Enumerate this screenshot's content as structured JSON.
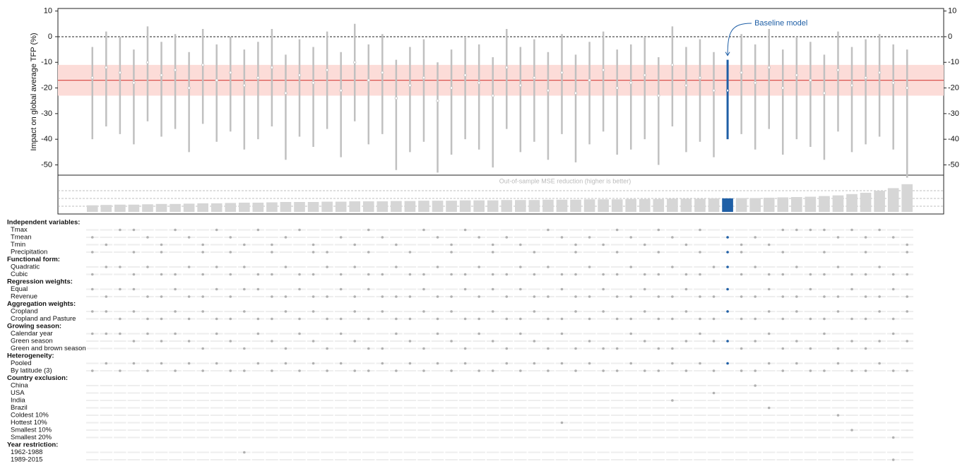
{
  "chart_data": {
    "type": "specification-curve",
    "y_label": "Impact on global average TFP (%)",
    "ylim": [
      -54,
      11
    ],
    "yticks": [
      -50,
      -40,
      -30,
      -20,
      -10,
      0,
      10
    ],
    "mean": -17,
    "band": [
      -23,
      -11
    ],
    "annotation": "Baseline model",
    "baseline_index": 46,
    "color": "#c0c0c0",
    "baseline_color": "#1f5fa6",
    "values": [
      -16,
      -12,
      -14,
      -18,
      -10,
      -15,
      -13,
      -20,
      -11,
      -17,
      -14,
      -19,
      -16,
      -12,
      -22,
      -15,
      -18,
      -13,
      -21,
      -10,
      -17,
      -14,
      -24,
      -19,
      -16,
      -25,
      -20,
      -15,
      -18,
      -23,
      -12,
      -19,
      -16,
      -21,
      -14,
      -22,
      -17,
      -13,
      -20,
      -18,
      -15,
      -23,
      -11,
      -19,
      -16,
      -21,
      -21,
      -14,
      -18,
      -12,
      -20,
      -15,
      -17,
      -22,
      -13,
      -19,
      -16,
      -14,
      -18,
      -20
    ],
    "low": [
      -40,
      -35,
      -38,
      -42,
      -33,
      -39,
      -36,
      -45,
      -34,
      -41,
      -37,
      -44,
      -40,
      -35,
      -48,
      -39,
      -43,
      -36,
      -47,
      -33,
      -42,
      -38,
      -52,
      -45,
      -41,
      -53,
      -46,
      -40,
      -44,
      -51,
      -36,
      -45,
      -41,
      -48,
      -38,
      -49,
      -42,
      -37,
      -46,
      -44,
      -40,
      -50,
      -35,
      -45,
      -41,
      -47,
      -40,
      -38,
      -44,
      -36,
      -46,
      -40,
      -43,
      -48,
      -37,
      -45,
      -42,
      -39,
      -44,
      -55
    ],
    "high": [
      -4,
      2,
      0,
      -5,
      4,
      -2,
      1,
      -6,
      3,
      -3,
      0,
      -5,
      -2,
      3,
      -7,
      -1,
      -4,
      2,
      -6,
      5,
      -3,
      1,
      -9,
      -4,
      -1,
      -10,
      -5,
      0,
      -3,
      -8,
      3,
      -4,
      -1,
      -6,
      1,
      -7,
      -2,
      2,
      -5,
      -3,
      0,
      -8,
      4,
      -4,
      -1,
      -6,
      -9,
      1,
      -3,
      3,
      -5,
      0,
      -2,
      -7,
      2,
      -4,
      -1,
      1,
      -3,
      -5
    ],
    "mse_label": "Out-of-sample MSE reduction (higher is better)",
    "mse_lim": [
      0,
      4.5
    ],
    "mse": [
      1.0,
      1.05,
      1.1,
      1.1,
      1.15,
      1.2,
      1.2,
      1.25,
      1.3,
      1.3,
      1.35,
      1.4,
      1.4,
      1.45,
      1.5,
      1.5,
      1.5,
      1.55,
      1.55,
      1.6,
      1.6,
      1.6,
      1.65,
      1.65,
      1.7,
      1.7,
      1.7,
      1.75,
      1.75,
      1.75,
      1.8,
      1.8,
      1.8,
      1.85,
      1.85,
      1.85,
      1.9,
      1.9,
      1.9,
      1.95,
      1.95,
      1.95,
      2.0,
      2.0,
      2.0,
      2.05,
      2.05,
      2.1,
      2.1,
      2.15,
      2.2,
      2.25,
      2.3,
      2.4,
      2.5,
      2.7,
      2.9,
      3.2,
      3.6,
      4.2
    ],
    "groups": [
      {
        "name": "Independent variables:",
        "rows": [
          {
            "label": "Tmax",
            "on": [
              2,
              3,
              6,
              9,
              12,
              15,
              20,
              24,
              27,
              33,
              38,
              41,
              44,
              50,
              51,
              52,
              53,
              55,
              57
            ]
          },
          {
            "label": "Tmean",
            "on": [
              0,
              4,
              7,
              10,
              14,
              18,
              21,
              25,
              28,
              30,
              34,
              36,
              39,
              42,
              46,
              48,
              54,
              56,
              58
            ]
          },
          {
            "label": "Tmin",
            "on": [
              1,
              5,
              8,
              11,
              13,
              16,
              19,
              22,
              26,
              29,
              31,
              35,
              37,
              40,
              43,
              47,
              49,
              59
            ]
          },
          {
            "label": "Precipitation",
            "on": [
              0,
              3,
              5,
              8,
              10,
              13,
              16,
              17,
              20,
              23,
              26,
              29,
              32,
              35,
              38,
              41,
              44,
              46,
              47,
              50,
              53,
              56,
              59
            ]
          }
        ]
      },
      {
        "name": "Functional form:",
        "rows": [
          {
            "label": "Quadratic",
            "on": [
              1,
              2,
              4,
              7,
              9,
              11,
              14,
              17,
              19,
              22,
              25,
              28,
              31,
              33,
              36,
              39,
              42,
              45,
              46,
              48,
              51,
              54,
              57
            ]
          },
          {
            "label": "Cubic",
            "on": [
              0,
              3,
              5,
              6,
              8,
              10,
              12,
              13,
              15,
              16,
              18,
              20,
              21,
              23,
              24,
              26,
              27,
              29,
              30,
              32,
              34,
              35,
              37,
              38,
              40,
              41,
              43,
              44,
              47,
              49,
              50,
              52,
              53,
              55,
              56,
              58,
              59
            ]
          }
        ]
      },
      {
        "name": "Regression weights:",
        "rows": [
          {
            "label": "Equal",
            "on": [
              0,
              2,
              3,
              6,
              9,
              11,
              12,
              15,
              18,
              20,
              24,
              27,
              29,
              31,
              34,
              37,
              40,
              43,
              46,
              49,
              52,
              55,
              58
            ]
          },
          {
            "label": "Revenue",
            "on": [
              1,
              4,
              5,
              7,
              8,
              10,
              13,
              14,
              16,
              17,
              19,
              21,
              22,
              23,
              25,
              26,
              28,
              30,
              32,
              33,
              35,
              36,
              38,
              39,
              41,
              42,
              44,
              45,
              47,
              48,
              50,
              51,
              53,
              54,
              56,
              57,
              59
            ]
          }
        ]
      },
      {
        "name": "Aggregation weights:",
        "rows": [
          {
            "label": "Cropland",
            "on": [
              0,
              1,
              3,
              6,
              8,
              11,
              14,
              16,
              19,
              21,
              24,
              26,
              29,
              32,
              35,
              37,
              40,
              43,
              46,
              49,
              51,
              54,
              57,
              59
            ]
          },
          {
            "label": "Cropland and Pasture",
            "on": [
              2,
              4,
              5,
              7,
              9,
              10,
              12,
              13,
              15,
              17,
              18,
              20,
              22,
              23,
              25,
              27,
              28,
              30,
              31,
              33,
              34,
              36,
              38,
              39,
              41,
              42,
              44,
              45,
              47,
              48,
              50,
              52,
              53,
              55,
              56,
              58
            ]
          }
        ]
      },
      {
        "name": "Growing season:",
        "rows": [
          {
            "label": "Calendar year",
            "on": [
              0,
              1,
              2,
              4,
              6,
              9,
              12,
              15,
              18,
              22,
              25,
              28,
              31,
              34,
              39,
              44,
              49,
              53,
              58
            ]
          },
          {
            "label": "Green season",
            "on": [
              3,
              5,
              7,
              10,
              13,
              16,
              19,
              23,
              26,
              29,
              32,
              36,
              40,
              43,
              45,
              46,
              48,
              51,
              55,
              57,
              59
            ]
          },
          {
            "label": "Green and brown season",
            "on": [
              8,
              11,
              14,
              17,
              20,
              21,
              24,
              27,
              30,
              33,
              35,
              37,
              38,
              41,
              42,
              47,
              50,
              52,
              54,
              56
            ]
          }
        ]
      },
      {
        "name": "Heterogeneity:",
        "rows": [
          {
            "label": "Pooled",
            "on": [
              1,
              3,
              5,
              7,
              9,
              12,
              14,
              16,
              18,
              21,
              23,
              25,
              27,
              30,
              32,
              34,
              36,
              39,
              42,
              44,
              46,
              49,
              51,
              54,
              57
            ]
          },
          {
            "label": "By latitude (3)",
            "on": [
              0,
              2,
              4,
              6,
              8,
              10,
              11,
              13,
              15,
              17,
              19,
              20,
              22,
              24,
              26,
              28,
              29,
              31,
              33,
              35,
              37,
              38,
              40,
              41,
              43,
              45,
              47,
              48,
              50,
              52,
              53,
              55,
              56,
              58,
              59
            ]
          }
        ]
      },
      {
        "name": "Country exclusion:",
        "rows": [
          {
            "label": "China",
            "on": [
              48
            ]
          },
          {
            "label": "USA",
            "on": [
              45
            ]
          },
          {
            "label": "India",
            "on": [
              42
            ]
          },
          {
            "label": "Brazil",
            "on": [
              49
            ]
          },
          {
            "label": "Coldest 10%",
            "on": [
              54
            ]
          },
          {
            "label": "Hottest 10%",
            "on": [
              34
            ]
          },
          {
            "label": "Smallest 10%",
            "on": [
              55
            ]
          },
          {
            "label": "Smallest 20%",
            "on": [
              58
            ]
          }
        ]
      },
      {
        "name": "Year restriction:",
        "rows": [
          {
            "label": "1962-1988",
            "on": [
              11
            ]
          },
          {
            "label": "1989-2015",
            "on": [
              58
            ]
          }
        ]
      }
    ]
  }
}
